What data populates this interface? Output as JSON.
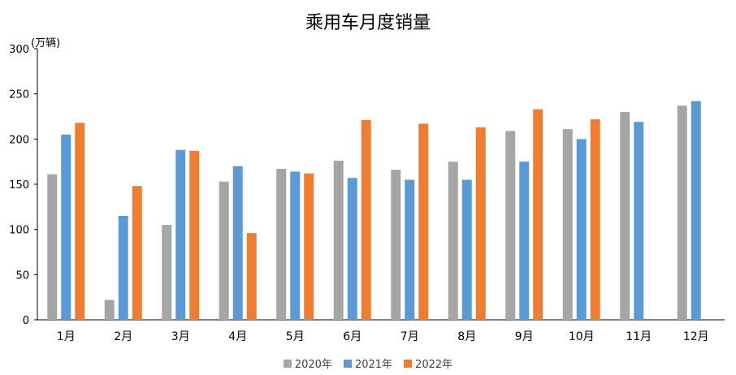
{
  "chart_data": {
    "type": "bar",
    "title": "乘用车月度销量",
    "ylabel": "(万辆)",
    "xlabel": "",
    "ylim": [
      0,
      300
    ],
    "yticks": [
      0,
      50,
      100,
      150,
      200,
      250,
      300
    ],
    "grid": false,
    "legend_position": "bottom",
    "categories": [
      "1月",
      "2月",
      "3月",
      "4月",
      "5月",
      "6月",
      "7月",
      "8月",
      "9月",
      "10月",
      "11月",
      "12月"
    ],
    "series": [
      {
        "name": "2020年",
        "color": "#a5a5a5",
        "values": [
          161,
          22,
          105,
          153,
          167,
          176,
          166,
          175,
          209,
          211,
          230,
          237
        ]
      },
      {
        "name": "2021年",
        "color": "#5b9bd5",
        "values": [
          205,
          115,
          188,
          170,
          164,
          157,
          155,
          155,
          175,
          200,
          219,
          242
        ]
      },
      {
        "name": "2022年",
        "color": "#ed7d31",
        "values": [
          218,
          148,
          187,
          96,
          162,
          221,
          217,
          213,
          233,
          222,
          null,
          null
        ]
      }
    ]
  }
}
